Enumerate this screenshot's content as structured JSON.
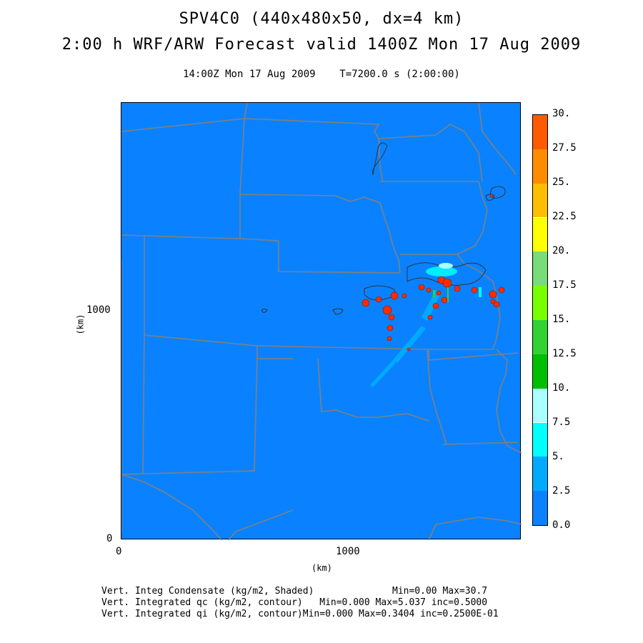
{
  "title": {
    "line1": "SPV4C0 (440x480x50, dx=4 km)",
    "line2": "2:00 h WRF/ARW Forecast valid 1400Z Mon 17 Aug 2009",
    "time": "14:00Z Mon 17 Aug 2009    T=7200.0 s (2:00:00)"
  },
  "axes": {
    "y_unit": "(km)",
    "x_unit": "(km)",
    "y_ticks": [
      "0",
      "1000"
    ],
    "x_ticks": [
      "0",
      "1000"
    ]
  },
  "colorbar": {
    "labels": [
      "30.",
      "27.5",
      "25.",
      "22.5",
      "20.",
      "17.5",
      "15.",
      "12.5",
      "10.",
      "7.5",
      "5.",
      "2.5",
      "0.0"
    ],
    "colors": [
      "#ff5a00",
      "#ff8c00",
      "#ffbe00",
      "#ffff00",
      "#78dc78",
      "#78ff00",
      "#32d232",
      "#00be00",
      "#aaffff",
      "#00ffff",
      "#00aaff",
      "#0a82ff"
    ]
  },
  "map": {
    "background_color": "#0a82ff",
    "state_line_color": "#808080"
  },
  "footer": {
    "line1": "Vert. Integ Condensate (kg/m2, Shaded)",
    "line1_stats": "Min=0.00 Max=30.7",
    "line2": "Vert. Integrated qc (kg/m2, contour)",
    "line2_stats": "Min=0.000 Max=5.037 inc=0.5000",
    "line3": "Vert. Integrated qi (kg/m2, contour)",
    "line3_stats": "Min=0.000 Max=0.3404 inc=0.2500E-01"
  }
}
